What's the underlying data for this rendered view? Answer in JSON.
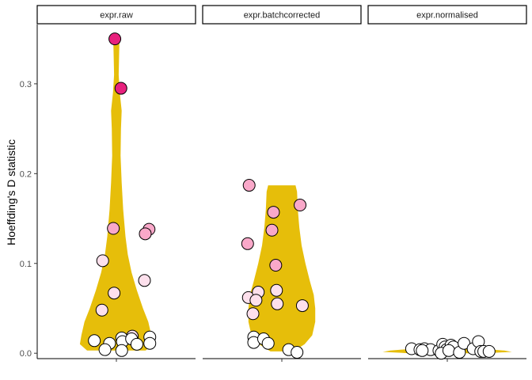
{
  "chart_data": {
    "type": "violin",
    "ylabel": "Hoeffding's D statistic",
    "ylim": [
      -0.006,
      0.366
    ],
    "yticks": [
      0.0,
      0.1,
      0.2,
      0.3
    ],
    "ytick_labels": [
      "0.0",
      "0.1",
      "0.2",
      "0.3"
    ],
    "grid": false,
    "fill_color": "#E6BE0A",
    "point_colors": {
      "low": "#FFFFFF",
      "mid_low": "#FDE0EC",
      "mid": "#F9A8C9",
      "high": "#E7217D"
    },
    "panels": [
      {
        "label": "expr.raw",
        "violin_profile": [
          [
            0.003,
            0.385
          ],
          [
            0.01,
            0.48
          ],
          [
            0.02,
            0.46
          ],
          [
            0.035,
            0.42
          ],
          [
            0.05,
            0.35
          ],
          [
            0.07,
            0.27
          ],
          [
            0.09,
            0.2
          ],
          [
            0.11,
            0.15
          ],
          [
            0.13,
            0.12
          ],
          [
            0.16,
            0.09
          ],
          [
            0.19,
            0.07
          ],
          [
            0.22,
            0.055
          ],
          [
            0.25,
            0.06
          ],
          [
            0.27,
            0.07
          ],
          [
            0.29,
            0.045
          ],
          [
            0.31,
            0.03
          ],
          [
            0.33,
            0.035
          ],
          [
            0.345,
            0.04
          ],
          [
            0.352,
            0.03
          ]
        ],
        "points": [
          {
            "x": -0.02,
            "y": 0.35,
            "c": "high"
          },
          {
            "x": 0.06,
            "y": 0.295,
            "c": "high"
          },
          {
            "x": -0.04,
            "y": 0.139,
            "c": "mid"
          },
          {
            "x": 0.43,
            "y": 0.138,
            "c": "mid"
          },
          {
            "x": 0.38,
            "y": 0.133,
            "c": "mid"
          },
          {
            "x": -0.18,
            "y": 0.103,
            "c": "mid_low"
          },
          {
            "x": 0.37,
            "y": 0.081,
            "c": "mid_low"
          },
          {
            "x": -0.03,
            "y": 0.067,
            "c": "mid_low"
          },
          {
            "x": -0.19,
            "y": 0.048,
            "c": "mid_low"
          },
          {
            "x": 0.21,
            "y": 0.019,
            "c": "mid_low"
          },
          {
            "x": -0.29,
            "y": 0.014,
            "c": "low"
          },
          {
            "x": -0.09,
            "y": 0.011,
            "c": "low"
          },
          {
            "x": 0.07,
            "y": 0.017,
            "c": "low"
          },
          {
            "x": 0.08,
            "y": 0.013,
            "c": "low"
          },
          {
            "x": 0.2,
            "y": 0.016,
            "c": "low"
          },
          {
            "x": 0.27,
            "y": 0.01,
            "c": "low"
          },
          {
            "x": 0.44,
            "y": 0.018,
            "c": "low"
          },
          {
            "x": 0.44,
            "y": 0.011,
            "c": "low"
          },
          {
            "x": -0.15,
            "y": 0.004,
            "c": "low"
          },
          {
            "x": 0.07,
            "y": 0.003,
            "c": "low"
          }
        ]
      },
      {
        "label": "expr.batchcorrected",
        "violin_profile": [
          [
            0.002,
            0.15
          ],
          [
            0.01,
            0.3
          ],
          [
            0.02,
            0.4
          ],
          [
            0.035,
            0.44
          ],
          [
            0.05,
            0.44
          ],
          [
            0.065,
            0.42
          ],
          [
            0.08,
            0.37
          ],
          [
            0.1,
            0.31
          ],
          [
            0.12,
            0.26
          ],
          [
            0.14,
            0.23
          ],
          [
            0.16,
            0.21
          ],
          [
            0.18,
            0.2
          ],
          [
            0.187,
            0.18
          ]
        ],
        "points": [
          {
            "x": -0.43,
            "y": 0.187,
            "c": "mid"
          },
          {
            "x": 0.24,
            "y": 0.165,
            "c": "mid"
          },
          {
            "x": -0.11,
            "y": 0.157,
            "c": "mid"
          },
          {
            "x": -0.13,
            "y": 0.137,
            "c": "mid"
          },
          {
            "x": -0.45,
            "y": 0.122,
            "c": "mid"
          },
          {
            "x": -0.08,
            "y": 0.098,
            "c": "mid"
          },
          {
            "x": -0.44,
            "y": 0.062,
            "c": "mid_low"
          },
          {
            "x": -0.31,
            "y": 0.068,
            "c": "mid_low"
          },
          {
            "x": -0.34,
            "y": 0.059,
            "c": "mid_low"
          },
          {
            "x": -0.07,
            "y": 0.07,
            "c": "mid_low"
          },
          {
            "x": -0.06,
            "y": 0.055,
            "c": "mid_low"
          },
          {
            "x": 0.27,
            "y": 0.053,
            "c": "mid_low"
          },
          {
            "x": -0.38,
            "y": 0.044,
            "c": "mid_low"
          },
          {
            "x": -0.37,
            "y": 0.018,
            "c": "low"
          },
          {
            "x": -0.37,
            "y": 0.012,
            "c": "low"
          },
          {
            "x": -0.24,
            "y": 0.016,
            "c": "low"
          },
          {
            "x": -0.18,
            "y": 0.011,
            "c": "low"
          },
          {
            "x": 0.09,
            "y": 0.004,
            "c": "low"
          },
          {
            "x": 0.2,
            "y": 0.001,
            "c": "low"
          }
        ]
      },
      {
        "label": "expr.normalised",
        "violin_profile": [
          [
            0.0,
            0.5
          ],
          [
            0.0015,
            0.85
          ],
          [
            0.003,
            0.75
          ],
          [
            0.005,
            0.45
          ],
          [
            0.007,
            0.2
          ],
          [
            0.01,
            0.05
          ]
        ],
        "points": [
          {
            "x": -0.47,
            "y": 0.005,
            "c": "low"
          },
          {
            "x": -0.36,
            "y": 0.004,
            "c": "low"
          },
          {
            "x": -0.3,
            "y": 0.005,
            "c": "low"
          },
          {
            "x": -0.22,
            "y": 0.004,
            "c": "low"
          },
          {
            "x": -0.33,
            "y": 0.003,
            "c": "low"
          },
          {
            "x": -0.11,
            "y": 0.003,
            "c": "low"
          },
          {
            "x": -0.06,
            "y": 0.01,
            "c": "low"
          },
          {
            "x": -0.03,
            "y": 0.007,
            "c": "low"
          },
          {
            "x": -0.01,
            "y": 0.004,
            "c": "low"
          },
          {
            "x": -0.08,
            "y": 0.0,
            "c": "low"
          },
          {
            "x": 0.05,
            "y": 0.009,
            "c": "low"
          },
          {
            "x": 0.08,
            "y": 0.007,
            "c": "low"
          },
          {
            "x": 0.02,
            "y": 0.003,
            "c": "low"
          },
          {
            "x": 0.16,
            "y": 0.001,
            "c": "low"
          },
          {
            "x": 0.22,
            "y": 0.011,
            "c": "low"
          },
          {
            "x": 0.34,
            "y": 0.005,
            "c": "low"
          },
          {
            "x": 0.41,
            "y": 0.013,
            "c": "low"
          },
          {
            "x": 0.44,
            "y": 0.002,
            "c": "low"
          },
          {
            "x": 0.48,
            "y": 0.002,
            "c": "low"
          },
          {
            "x": 0.55,
            "y": 0.002,
            "c": "low"
          }
        ]
      }
    ]
  }
}
